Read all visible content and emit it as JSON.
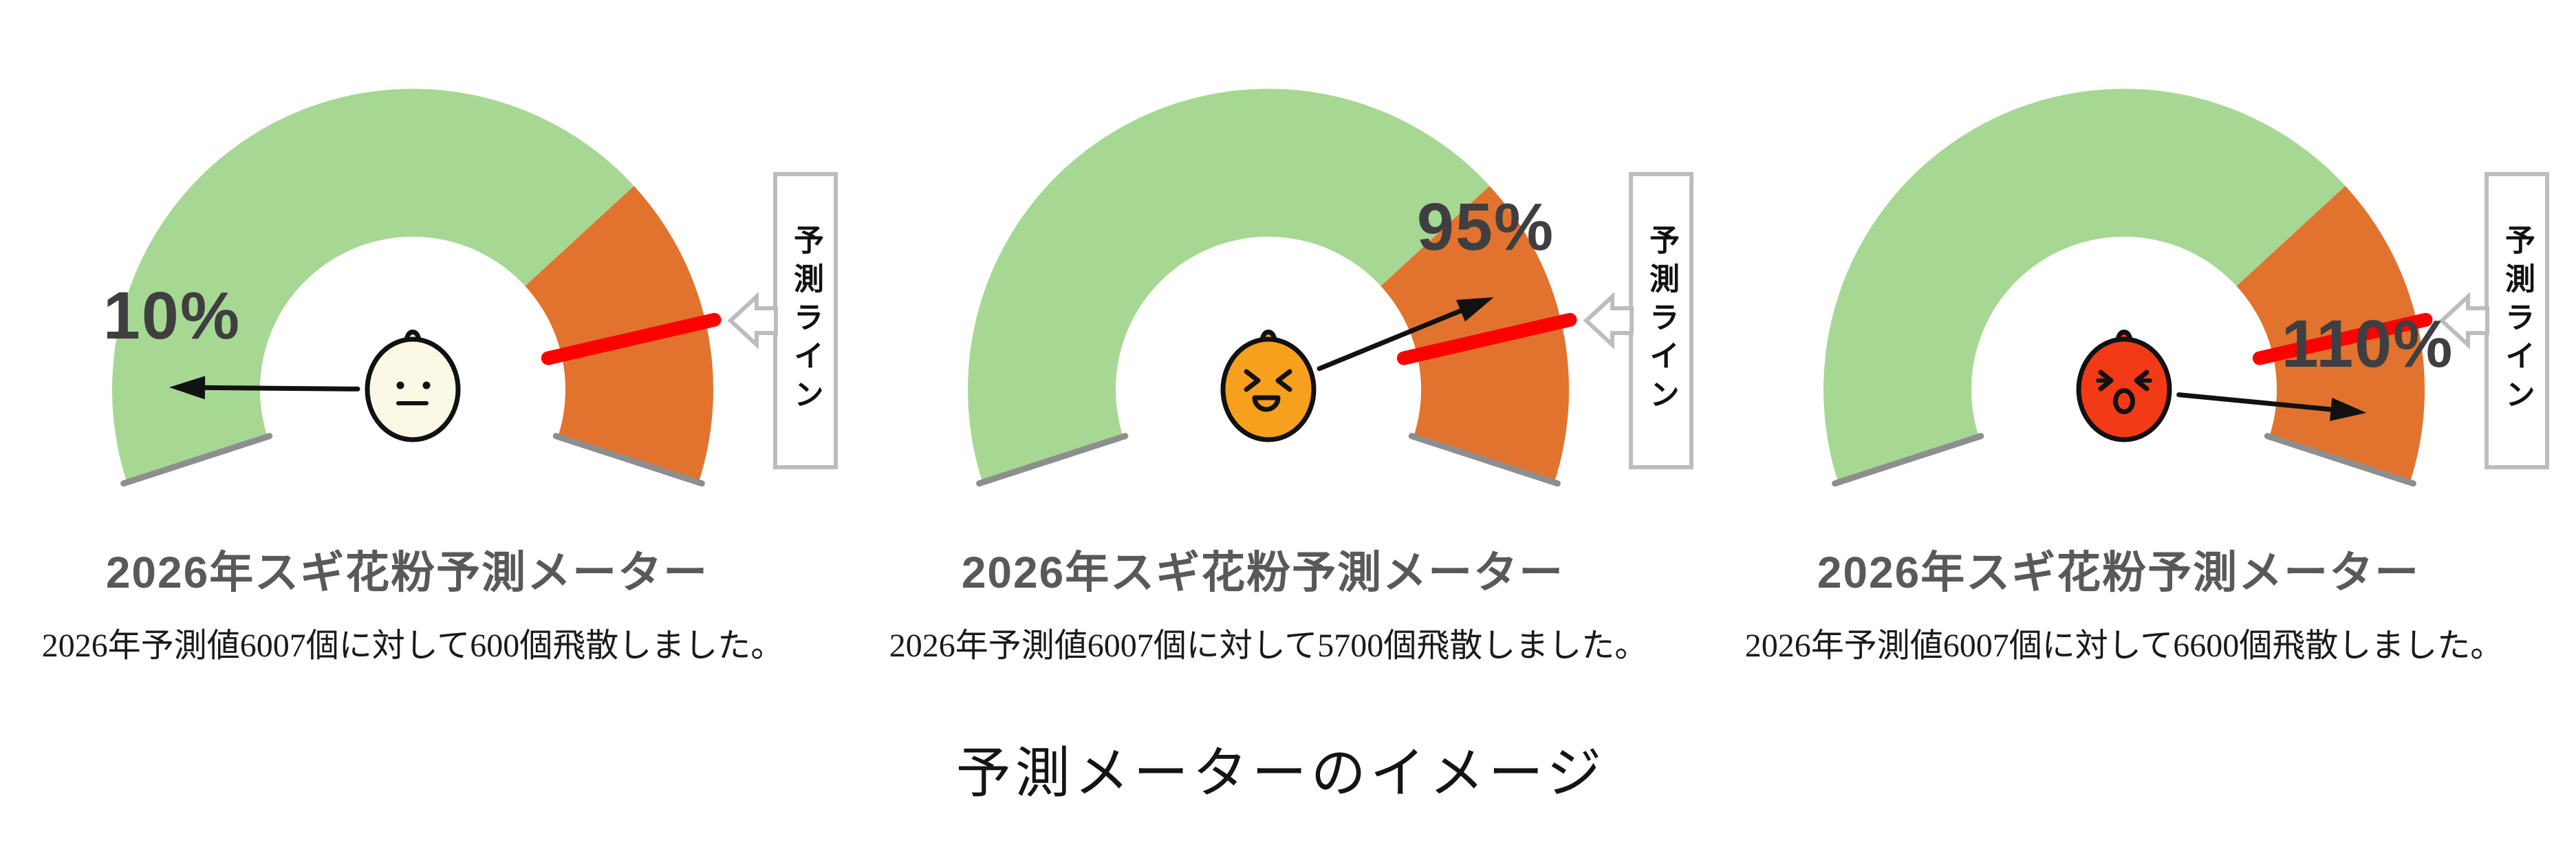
{
  "labels": {
    "forecast_line": "予測ライン",
    "bottom_caption": "予測メーターのイメージ"
  },
  "colors": {
    "green_zone": "#A6D893",
    "orange_zone": "#E1732E",
    "forecast_line_red": "#FF0000",
    "edge_gray": "#8E8E90",
    "box_border_gray": "#BBBDBF",
    "needle_black": "#111111",
    "title_gray": "#59595B",
    "percent_gray": "#3F3F41",
    "face_neutral": "#FBF9E6",
    "face_strained": "#F6A01E",
    "face_alert": "#F23A17"
  },
  "gauges": [
    {
      "percent": 10,
      "percent_label": "10%",
      "title": "2026年スギ花粉予測メーター",
      "caption": "2026年予測値6007個に対して600個飛散しました。",
      "face": "neutral"
    },
    {
      "percent": 95,
      "percent_label": "95%",
      "title": "2026年スギ花粉予測メーター",
      "caption": "2026年予測値6007個に対して5700個飛散しました。",
      "face": "strained"
    },
    {
      "percent": 110,
      "percent_label": "110%",
      "title": "2026年スギ花粉予測メーター",
      "caption": "2026年予測値6007個に対して6600個飛散しました。",
      "face": "alert"
    }
  ],
  "chart_data": {
    "type": "gauge",
    "title": "予測メーターのイメージ",
    "year": 2026,
    "forecast_total": 6007,
    "gauge_scale": {
      "start_pct": 0,
      "forecast_line_pct": 100,
      "max_pct": 117,
      "start_angle_deg": 198,
      "forecast_line_angle_deg": 13,
      "end_angle_deg": -18,
      "green_zone_pct": [
        0,
        84
      ],
      "orange_zone_pct": [
        84,
        117
      ]
    },
    "meters": [
      {
        "label": "2026年スギ花粉予測メーター",
        "percent": 10,
        "dispersed": 600,
        "face": "neutral"
      },
      {
        "label": "2026年スギ花粉予測メーター",
        "percent": 95,
        "dispersed": 5700,
        "face": "strained"
      },
      {
        "label": "2026年スギ花粉予測メーター",
        "percent": 110,
        "dispersed": 6600,
        "face": "alert"
      }
    ],
    "legend": "red line = 予測ライン (forecast line, 100% of forecast value 6007)"
  }
}
